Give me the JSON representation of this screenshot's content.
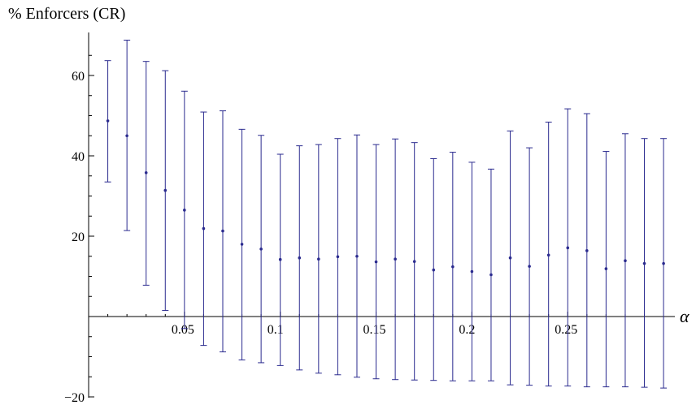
{
  "chart_data": {
    "type": "scatter",
    "title": "",
    "ylabel": "% Enforcers (CR)",
    "xlabel": "α",
    "xlim": [
      0.0,
      0.3
    ],
    "ylim": [
      -20,
      70
    ],
    "xticks": [
      0.05,
      0.1,
      0.15,
      0.2,
      0.25
    ],
    "xtick_labels": [
      "0.05",
      "0.1",
      "0.15",
      "0.2",
      "0.25"
    ],
    "yticks": [
      -20,
      20,
      40,
      60
    ],
    "ytick_labels": [
      "−20",
      "20",
      "40",
      "60"
    ],
    "grid": false,
    "colors": {
      "series": "#2b2b8f",
      "axis": "#000000"
    },
    "series": [
      {
        "x": [
          0.01,
          0.02,
          0.03,
          0.04,
          0.05,
          0.06,
          0.07,
          0.08,
          0.09,
          0.1,
          0.11,
          0.12,
          0.13,
          0.14,
          0.15,
          0.16,
          0.17,
          0.18,
          0.19,
          0.2,
          0.21,
          0.22,
          0.23,
          0.24,
          0.25,
          0.26,
          0.27,
          0.28,
          0.29,
          0.3
        ],
        "y": [
          48.7,
          45.0,
          35.8,
          31.4,
          26.5,
          21.9,
          21.3,
          18.0,
          16.8,
          14.2,
          14.6,
          14.3,
          14.9,
          15.0,
          13.6,
          14.3,
          13.7,
          11.6,
          12.4,
          11.2,
          10.4,
          14.6,
          12.5,
          15.3,
          17.1,
          16.4,
          11.9,
          13.9,
          13.2,
          13.2
        ],
        "upper": [
          63.7,
          68.8,
          63.5,
          61.2,
          56.1,
          50.9,
          51.2,
          46.6,
          45.1,
          40.4,
          42.5,
          42.8,
          44.3,
          45.2,
          42.8,
          44.2,
          43.3,
          39.3,
          40.9,
          38.4,
          36.7,
          46.2,
          42.0,
          48.4,
          51.7,
          50.5,
          41.1,
          45.5,
          44.3,
          44.3
        ],
        "lower": [
          33.5,
          21.4,
          7.8,
          1.5,
          -3.0,
          -7.2,
          -8.8,
          -10.8,
          -11.5,
          -12.2,
          -13.3,
          -14.1,
          -14.5,
          -15.1,
          -15.5,
          -15.7,
          -15.8,
          -15.9,
          -16.0,
          -16.0,
          -16.0,
          -17.0,
          -17.1,
          -17.3,
          -17.3,
          -17.5,
          -17.5,
          -17.5,
          -17.6,
          -17.8
        ]
      }
    ]
  }
}
